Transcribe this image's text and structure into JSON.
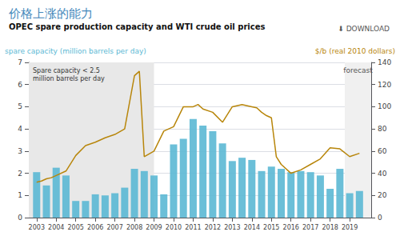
{
  "chart_data": {
    "type": "bar",
    "title": "价格上涨的能力",
    "subtitle": "OPEC spare production capacity and WTI crude oil prices",
    "annotations": [
      "⬇ DOWNLOAD"
    ],
    "ylabel": "spare capacity (million barrels per day)",
    "y2label": "$/b (real 2010 dollars)",
    "xlim": [
      2002.6,
      2020.1
    ],
    "xticks": [
      2003,
      2004,
      2005,
      2006,
      2007,
      2008,
      2009,
      2010,
      2011,
      2012,
      2013,
      2014,
      2015,
      2016,
      2017,
      2018,
      2019
    ],
    "ylim": [
      0,
      7
    ],
    "yticks": [
      0,
      1,
      2,
      3,
      4,
      5,
      6,
      7
    ],
    "y2lim": [
      0,
      140
    ],
    "y2ticks": [
      0,
      20,
      40,
      60,
      80,
      100,
      120,
      140
    ],
    "grid": true,
    "shaded_regions": [
      {
        "start": 2002.6,
        "end": 2009.0,
        "color": "#e8e8e8",
        "label": "Spare capacity < 2.5 million barrels per day"
      },
      {
        "start": 2018.75,
        "end": 2020.1,
        "color": "#f0f0f0",
        "label": "forecast"
      }
    ],
    "series": [
      {
        "type": "bar",
        "color": "#5bb8d4",
        "x": [
          2003.0,
          2003.5,
          2004.0,
          2004.5,
          2005.0,
          2005.5,
          2006.0,
          2006.5,
          2007.0,
          2007.5,
          2008.0,
          2008.5,
          2009.0,
          2009.5,
          2010.0,
          2010.5,
          2011.0,
          2011.5,
          2012.0,
          2012.5,
          2013.0,
          2013.5,
          2014.0,
          2014.5,
          2015.0,
          2015.5,
          2016.0,
          2016.5,
          2017.0,
          2017.5,
          2018.0,
          2018.5,
          2019.0,
          2019.5
        ],
        "values": [
          2.05,
          1.45,
          2.25,
          1.9,
          0.75,
          0.75,
          1.05,
          1.0,
          1.1,
          1.35,
          2.2,
          2.1,
          1.9,
          1.05,
          3.3,
          3.55,
          4.45,
          4.15,
          3.9,
          3.35,
          2.55,
          2.7,
          2.6,
          2.1,
          2.3,
          2.2,
          2.05,
          2.1,
          2.05,
          1.9,
          1.3,
          2.2,
          1.1,
          1.2
        ]
      },
      {
        "type": "line",
        "axis": "y2",
        "color": "#b8860b",
        "x": [
          2003.0,
          2003.25,
          2003.5,
          2003.75,
          2004.0,
          2004.5,
          2005.0,
          2005.5,
          2006.0,
          2006.5,
          2007.0,
          2007.5,
          2008.0,
          2008.25,
          2008.5,
          2009.0,
          2009.5,
          2010.0,
          2010.5,
          2011.0,
          2011.25,
          2011.5,
          2012.0,
          2012.5,
          2013.0,
          2013.5,
          2014.0,
          2014.25,
          2014.5,
          2014.75,
          2015.0,
          2015.25,
          2015.5,
          2016.0,
          2016.5,
          2017.0,
          2017.5,
          2018.0,
          2018.5,
          2019.0,
          2019.5
        ],
        "values": [
          32,
          33,
          35,
          36,
          38,
          42,
          56,
          65,
          68,
          72,
          75,
          80,
          128,
          132,
          55,
          60,
          78,
          82,
          100,
          100,
          102,
          98,
          95,
          86,
          100,
          102,
          100,
          99,
          95,
          92,
          90,
          55,
          48,
          40,
          43,
          48,
          53,
          63,
          62,
          55,
          58
        ]
      }
    ]
  }
}
